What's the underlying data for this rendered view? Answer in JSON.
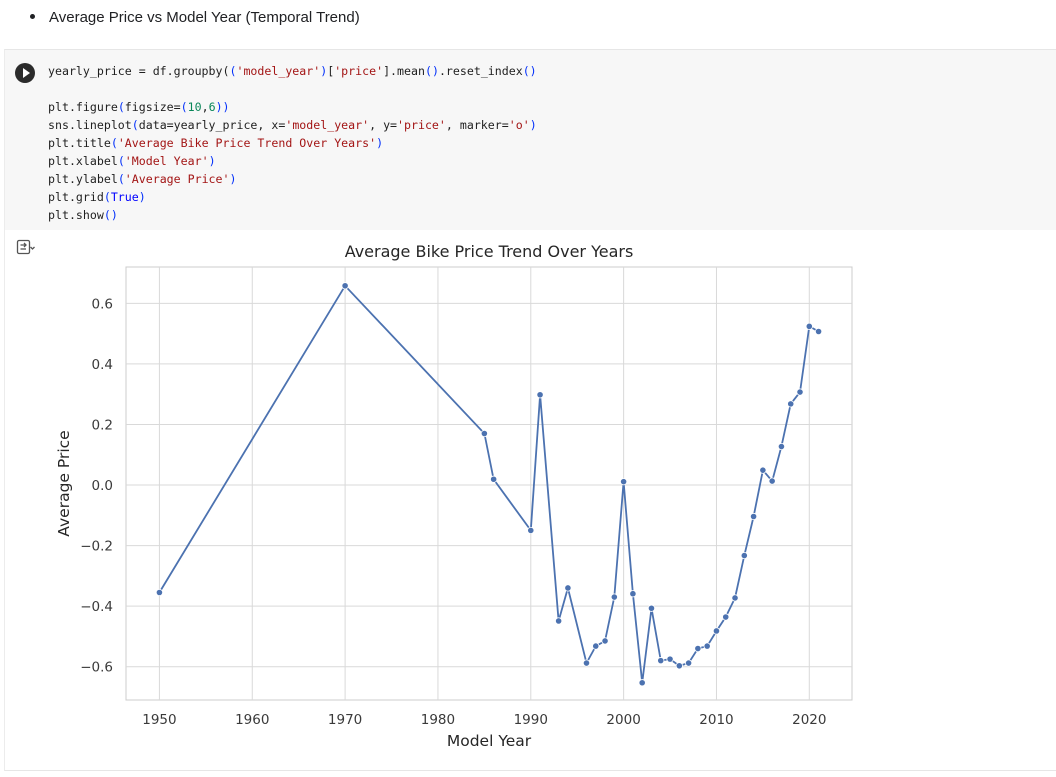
{
  "markdown": {
    "bullet_text": "Average Price vs Model Year (Temporal Trend)"
  },
  "cell": {
    "code_lines": [
      [
        [
          "t",
          "yearly_price = df.groupby("
        ],
        [
          "p",
          "("
        ],
        [
          "s",
          "'model_year'"
        ],
        [
          "p",
          ")"
        ],
        [
          "t",
          "["
        ],
        [
          "s",
          "'price'"
        ],
        [
          "t",
          "].mean"
        ],
        [
          "p",
          "()"
        ],
        [
          "t",
          ".reset_index"
        ],
        [
          "p",
          "()"
        ]
      ],
      [],
      [
        [
          "t",
          "plt.figure"
        ],
        [
          "p",
          "("
        ],
        [
          "t",
          "figsize="
        ],
        [
          "p",
          "("
        ],
        [
          "n",
          "10"
        ],
        [
          "t",
          ","
        ],
        [
          "n",
          "6"
        ],
        [
          "p",
          "))"
        ]
      ],
      [
        [
          "t",
          "sns.lineplot"
        ],
        [
          "p",
          "("
        ],
        [
          "t",
          "data=yearly_price, x="
        ],
        [
          "s",
          "'model_year'"
        ],
        [
          "t",
          ", y="
        ],
        [
          "s",
          "'price'"
        ],
        [
          "t",
          ", marker="
        ],
        [
          "s",
          "'o'"
        ],
        [
          "p",
          ")"
        ]
      ],
      [
        [
          "t",
          "plt.title"
        ],
        [
          "p",
          "("
        ],
        [
          "s",
          "'Average Bike Price Trend Over Years'"
        ],
        [
          "p",
          ")"
        ]
      ],
      [
        [
          "t",
          "plt.xlabel"
        ],
        [
          "p",
          "("
        ],
        [
          "s",
          "'Model Year'"
        ],
        [
          "p",
          ")"
        ]
      ],
      [
        [
          "t",
          "plt.ylabel"
        ],
        [
          "p",
          "("
        ],
        [
          "s",
          "'Average Price'"
        ],
        [
          "p",
          ")"
        ]
      ],
      [
        [
          "t",
          "plt.grid"
        ],
        [
          "p",
          "("
        ],
        [
          "k",
          "True"
        ],
        [
          "p",
          ")"
        ]
      ],
      [
        [
          "t",
          "plt.show"
        ],
        [
          "p",
          "()"
        ]
      ]
    ]
  },
  "icons": {
    "run": "play-icon",
    "output": "output-toggle-icon"
  },
  "colors": {
    "line": "#4c72b0",
    "grid": "#d9d9d9",
    "code_bg": "#f7f7f7"
  },
  "chart_data": {
    "type": "line",
    "title": "Average Bike Price Trend Over Years",
    "xlabel": "Model Year",
    "ylabel": "Average Price",
    "xlim": [
      1946.4,
      1024.6
    ],
    "ylim": [
      -0.71,
      0.72
    ],
    "xticks": [
      1950,
      1960,
      1970,
      1980,
      1990,
      2000,
      2010,
      2020
    ],
    "yticks": [
      -0.6,
      -0.4,
      -0.2,
      0.0,
      0.2,
      0.4,
      0.6
    ],
    "ytick_labels": [
      "−0.6",
      "−0.4",
      "−0.2",
      "0.0",
      "0.2",
      "0.4",
      "0.6"
    ],
    "grid": true,
    "marker": "o",
    "points": [
      [
        1950,
        -0.355
      ],
      [
        1970,
        0.658
      ],
      [
        1985,
        0.17
      ],
      [
        1986,
        0.019
      ],
      [
        1990,
        -0.15
      ],
      [
        1991,
        0.298
      ],
      [
        1993,
        -0.449
      ],
      [
        1994,
        -0.34
      ],
      [
        1996,
        -0.588
      ],
      [
        1997,
        -0.532
      ],
      [
        1998,
        -0.515
      ],
      [
        1999,
        -0.37
      ],
      [
        2000,
        0.011
      ],
      [
        2001,
        -0.359
      ],
      [
        2002,
        -0.653
      ],
      [
        2003,
        -0.407
      ],
      [
        2004,
        -0.58
      ],
      [
        2005,
        -0.575
      ],
      [
        2006,
        -0.597
      ],
      [
        2007,
        -0.588
      ],
      [
        2008,
        -0.54
      ],
      [
        2009,
        -0.532
      ],
      [
        2010,
        -0.482
      ],
      [
        2011,
        -0.436
      ],
      [
        2012,
        -0.373
      ],
      [
        2013,
        -0.233
      ],
      [
        2014,
        -0.104
      ],
      [
        2015,
        0.049
      ],
      [
        2016,
        0.013
      ],
      [
        2017,
        0.127
      ],
      [
        2018,
        0.268
      ],
      [
        2019,
        0.307
      ],
      [
        2020,
        0.524
      ],
      [
        2021,
        0.507
      ]
    ]
  }
}
